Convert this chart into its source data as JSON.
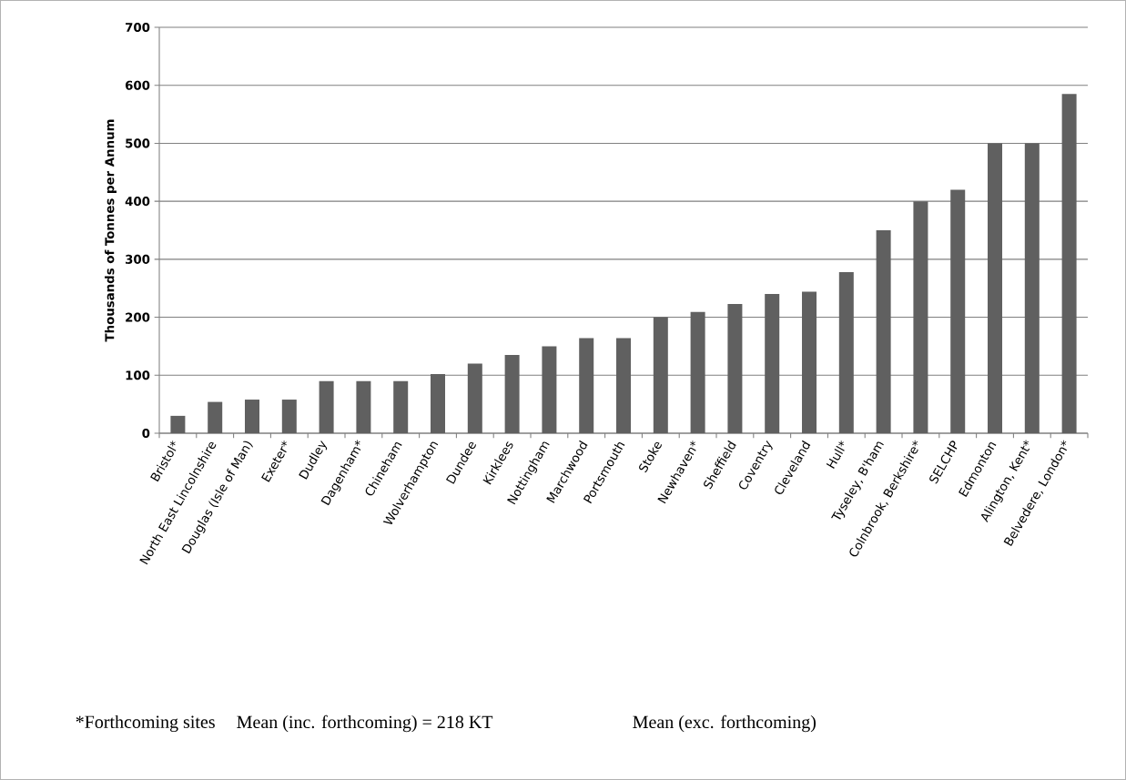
{
  "chart_data": {
    "type": "bar",
    "ylabel": "Thousands of Tonnes per Annum",
    "categories": [
      "Bristol*",
      "North East Lincolnshire",
      "Douglas (Isle of Man)",
      "Exeter*",
      "Dudley",
      "Dagenham*",
      "Chineham",
      "Wolverhampton",
      "Dundee",
      "Kirklees",
      "Nottingham",
      "Marchwood",
      "Portsmouth",
      "Stoke",
      "Newhaven*",
      "Sheffield",
      "Coventry",
      "Cleveland",
      "Hull*",
      "Tyseley, B'ham",
      "Colnbrook, Berkshire*",
      "SELCHP",
      "Edmonton",
      "Alington, Kent*",
      "Belvedere, London*"
    ],
    "values": [
      30,
      54,
      58,
      58,
      90,
      90,
      90,
      102,
      120,
      135,
      150,
      164,
      164,
      200,
      209,
      223,
      240,
      244,
      278,
      350,
      400,
      420,
      500,
      500,
      585
    ],
    "color": "#606060",
    "ylim": [
      0,
      700
    ],
    "yticks": [
      0,
      100,
      200,
      300,
      400,
      500,
      600,
      700
    ],
    "grid": "y",
    "annotations": [
      "*Forthcoming sites",
      "Mean (inc. forthcoming) = 218 KT",
      "Mean (exc. forthcoming)"
    ]
  }
}
